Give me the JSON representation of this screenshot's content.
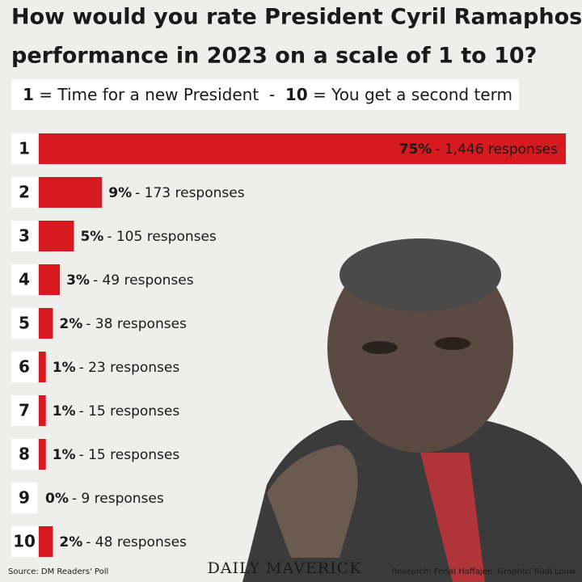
{
  "chart_data": {
    "type": "bar",
    "orientation": "horizontal",
    "title": [
      "How would you rate President Cyril Ramaphosa’s",
      "performance in 2023 on a scale of 1 to 10?"
    ],
    "subtitle": {
      "low_key": "1",
      "low_text": " = Time for a new President  -  ",
      "high_key": "10",
      "high_text": " = You get a second term"
    },
    "categories": [
      "1",
      "2",
      "3",
      "4",
      "5",
      "6",
      "7",
      "8",
      "9",
      "10"
    ],
    "values": [
      75,
      9,
      5,
      3,
      2,
      1,
      1,
      1,
      0,
      2
    ],
    "value_labels": [
      "75%",
      "9%",
      "5%",
      "3%",
      "2%",
      "1%",
      "1%",
      "1%",
      "0%",
      "2%"
    ],
    "response_labels": [
      "- 1,446 responses",
      "- 173 responses",
      "- 105 responses",
      "- 49 responses",
      "- 38 responses",
      "- 23 responses",
      "- 15 responses",
      "- 15 responses",
      "- 9 responses",
      "- 48 responses"
    ],
    "color": "#d71920",
    "xlim": [
      0,
      75
    ],
    "source": "Source: DM Readers' Poll",
    "logo": "DAILY MAVERICK",
    "credit": "Research: Ferial Haffajee. Graphic: Rudi Louw"
  }
}
